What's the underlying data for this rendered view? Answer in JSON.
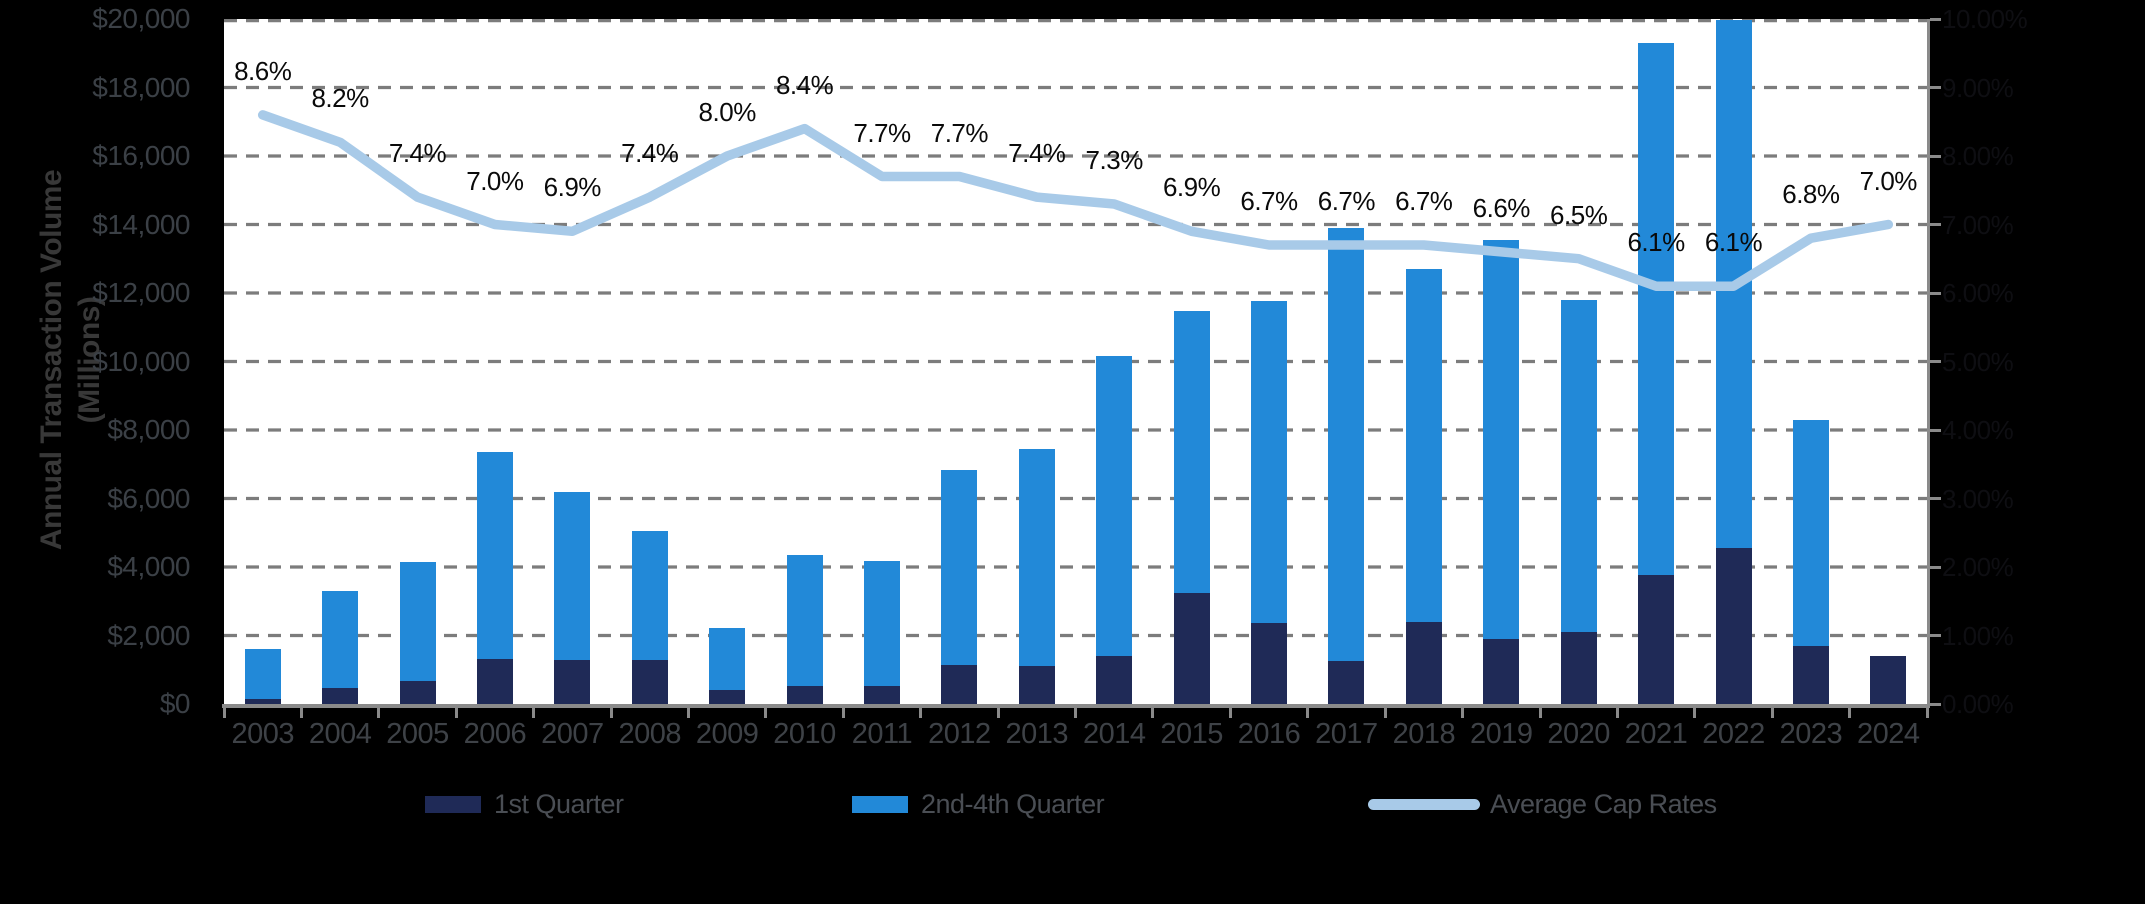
{
  "y_axis_title_line1": "Annual Transaction Volume",
  "y_axis_title_line2": "(Millions)",
  "legend": {
    "q1_label": "1st Quarter",
    "q24_label": "2nd-4th Quarter",
    "cap_label": "Average Cap Rates"
  },
  "colors": {
    "q1_bar": "#1f2a57",
    "q24_bar": "#2289d8",
    "cap_line": "#a8cae8",
    "gridline": "#7c7c7c",
    "axis": "#8a8a8a",
    "plot_background": "#ffffff",
    "page_background": "#000000"
  },
  "chart_data": {
    "type": "bar",
    "subtype": "stacked-bars-with-line-overlay",
    "title": "",
    "xlabel": "",
    "ylabel": "Annual Transaction Volume (Millions)",
    "grid": "horizontal dashed",
    "legend_position": "bottom",
    "categories": [
      2003,
      2004,
      2005,
      2006,
      2007,
      2008,
      2009,
      2010,
      2011,
      2012,
      2013,
      2014,
      2015,
      2016,
      2017,
      2018,
      2019,
      2020,
      2021,
      2022,
      2023,
      2024
    ],
    "series": [
      {
        "name": "1st Quarter",
        "type": "bar-stack-bottom",
        "axis": "left",
        "values": [
          150,
          460,
          680,
          1320,
          1300,
          1300,
          420,
          520,
          520,
          1140,
          1100,
          1400,
          3250,
          2380,
          1250,
          2400,
          1900,
          2100,
          3780,
          4570,
          1700,
          1400
        ]
      },
      {
        "name": "2nd-4th Quarter",
        "type": "bar-stack-top",
        "axis": "left",
        "values": [
          1450,
          2850,
          3480,
          6030,
          4900,
          3740,
          1810,
          3820,
          3670,
          5700,
          6350,
          8750,
          8230,
          9380,
          12650,
          10290,
          11650,
          9690,
          15520,
          15410,
          6580,
          0
        ]
      },
      {
        "name": "Average Cap Rates",
        "type": "line",
        "axis": "right",
        "values": [
          8.6,
          8.2,
          7.4,
          7.0,
          6.9,
          7.4,
          8.0,
          8.4,
          7.7,
          7.7,
          7.4,
          7.3,
          6.9,
          6.7,
          6.7,
          6.7,
          6.6,
          6.5,
          6.1,
          6.1,
          6.8,
          7.0
        ],
        "point_labels": [
          "8.6%",
          "8.2%",
          "7.4%",
          "7.0%",
          "6.9%",
          "7.4%",
          "8.0%",
          "8.4%",
          "7.7%",
          "7.7%",
          "7.4%",
          "7.3%",
          "6.9%",
          "6.7%",
          "6.7%",
          "6.7%",
          "6.6%",
          "6.5%",
          "6.1%",
          "6.1%",
          "6.8%",
          "7.0%"
        ]
      }
    ],
    "left_axis": {
      "min": 0,
      "max": 20000,
      "step": 2000,
      "tick_labels": [
        "$20,000",
        "$18,000",
        "$16,000",
        "$14,000",
        "$12,000",
        "$10,000",
        "$8,000",
        "$6,000",
        "$4,000",
        "$2,000",
        "$0"
      ]
    },
    "right_axis": {
      "min": 0,
      "max": 10,
      "step": 1,
      "tick_labels": [
        "10.00%",
        "9.00%",
        "8.00%",
        "7.00%",
        "6.00%",
        "5.00%",
        "4.00%",
        "3.00%",
        "2.00%",
        "1.00%",
        "0.00%"
      ]
    }
  }
}
